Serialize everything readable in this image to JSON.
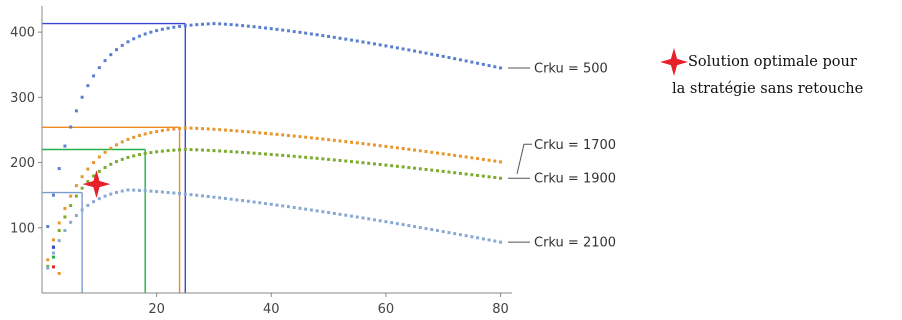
{
  "chart_data": {
    "type": "scatter",
    "xlim": [
      0,
      82
    ],
    "ylim": [
      0,
      440
    ],
    "x_ticks": [
      "20",
      "40",
      "60",
      "80"
    ],
    "y_ticks": [
      "100",
      "200",
      "300",
      "400"
    ],
    "x_tick_values": [
      20,
      40,
      60,
      80
    ],
    "y_tick_values": [
      100,
      200,
      300,
      400
    ],
    "grid": false,
    "series": [
      {
        "name": "Crku = 500",
        "color": "#5b7fd0",
        "peak_x": 30,
        "peak_y": 413,
        "end_y": 345,
        "start_y": 45,
        "k": 5.0
      },
      {
        "name": "Crku = 1700",
        "color": "#e8962e",
        "peak_x": 25,
        "peak_y": 253,
        "end_y": 201,
        "start_y": 15,
        "k": 4.0
      },
      {
        "name": "Crku = 1900",
        "color": "#7cab2e",
        "peak_x": 25,
        "peak_y": 220,
        "end_y": 176,
        "start_y": 5,
        "k": 4.5
      },
      {
        "name": "Crku = 2100",
        "color": "#8aa9d2",
        "peak_x": 15,
        "peak_y": 158,
        "end_y": 78,
        "start_y": 10,
        "k": 3.0
      }
    ],
    "optimum_lines": [
      {
        "series": "Crku = 500",
        "x": 25,
        "y": 413,
        "color": "#3a46d6"
      },
      {
        "series": "Crku = 1700",
        "x": 24,
        "y": 254,
        "color": "#f08a24"
      },
      {
        "series": "Crku = 1900",
        "x": 18,
        "y": 220,
        "color": "#27b04a"
      },
      {
        "series": "Crku = 2100",
        "x": 7,
        "y": 154,
        "color": "#7d9bd2"
      }
    ],
    "optimal_point": {
      "x": 9.5,
      "y": 167,
      "color": "#e8202a"
    },
    "legend": {
      "marker_color": "#e8202a",
      "line1": "Solution optimale pour",
      "line2": "la stratégie sans retouche",
      "position": "right"
    }
  }
}
